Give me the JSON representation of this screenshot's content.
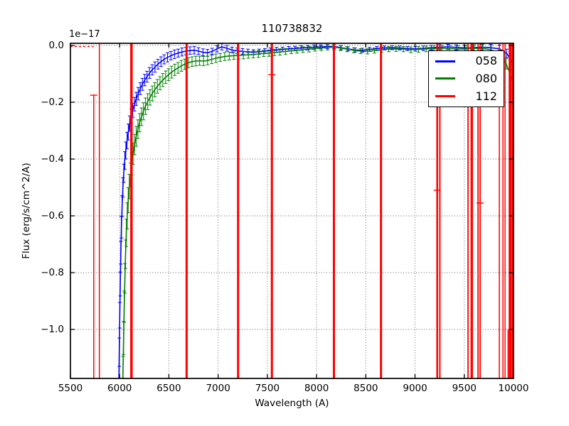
{
  "chart_data": {
    "type": "line",
    "title": "110738832",
    "xlabel": "Wavelength (A)",
    "ylabel": "Flux (erg/s/cm^2/A)",
    "offset_text": "1e−17",
    "xlim": [
      5500,
      10000
    ],
    "ylim": [
      -1.17,
      0.01
    ],
    "xticks": [
      5500,
      6000,
      6500,
      7000,
      7500,
      8000,
      8500,
      9000,
      9500,
      10000
    ],
    "xtick_labels": [
      "5500",
      "6000",
      "6500",
      "7000",
      "7500",
      "8000",
      "8500",
      "9000",
      "9500",
      "10000"
    ],
    "yticks": [
      0.0,
      -0.2,
      -0.4,
      -0.6,
      -0.8,
      -1.0
    ],
    "ytick_labels": [
      "0.0",
      "−0.2",
      "−0.4",
      "−0.6",
      "−0.8",
      "−1.0"
    ],
    "grid": true,
    "legend_position": "upper right",
    "series": [
      {
        "name": "058",
        "color": "#0000ff",
        "style": "line-with-errorbars",
        "points": [
          [
            5990,
            -1.25,
            0.05
          ],
          [
            5996,
            -1.08,
            0.05
          ],
          [
            6001,
            -0.95,
            0.045
          ],
          [
            6006,
            -0.84,
            0.042
          ],
          [
            6012,
            -0.73,
            0.04
          ],
          [
            6018,
            -0.64,
            0.038
          ],
          [
            6025,
            -0.565,
            0.036
          ],
          [
            6033,
            -0.5,
            0.034
          ],
          [
            6042,
            -0.45,
            0.032
          ],
          [
            6052,
            -0.405,
            0.031
          ],
          [
            6063,
            -0.37,
            0.03
          ],
          [
            6075,
            -0.335,
            0.029
          ],
          [
            6088,
            -0.305,
            0.028
          ],
          [
            6102,
            -0.275,
            0.027
          ],
          [
            6117,
            -0.25,
            0.026
          ],
          [
            6133,
            -0.228,
            0.025
          ],
          [
            6150,
            -0.207,
            0.024
          ],
          [
            6168,
            -0.188,
            0.023
          ],
          [
            6188,
            -0.17,
            0.022
          ],
          [
            6209,
            -0.152,
            0.021
          ],
          [
            6231,
            -0.137,
            0.021
          ],
          [
            6254,
            -0.122,
            0.02
          ],
          [
            6278,
            -0.11,
            0.019
          ],
          [
            6304,
            -0.097,
            0.019
          ],
          [
            6331,
            -0.086,
            0.018
          ],
          [
            6359,
            -0.076,
            0.018
          ],
          [
            6389,
            -0.066,
            0.017
          ],
          [
            6420,
            -0.057,
            0.017
          ],
          [
            6452,
            -0.049,
            0.016
          ],
          [
            6486,
            -0.042,
            0.016
          ],
          [
            6521,
            -0.036,
            0.015
          ],
          [
            6557,
            -0.031,
            0.015
          ],
          [
            6594,
            -0.027,
            0.014
          ],
          [
            6633,
            -0.023,
            0.014
          ],
          [
            6673,
            -0.02,
            0.013
          ],
          [
            6714,
            -0.018,
            0.013
          ],
          [
            6757,
            -0.017,
            0.013
          ],
          [
            6801,
            -0.02,
            0.012
          ],
          [
            6846,
            -0.024,
            0.012
          ],
          [
            6892,
            -0.026,
            0.012
          ],
          [
            6939,
            -0.021,
            0.011
          ],
          [
            6988,
            -0.012,
            0.011
          ],
          [
            7038,
            -0.005,
            0.011
          ],
          [
            7089,
            -0.01,
            0.01
          ],
          [
            7141,
            -0.016,
            0.01
          ],
          [
            7194,
            -0.019,
            0.01
          ],
          [
            7248,
            -0.021,
            0.01
          ],
          [
            7303,
            -0.023,
            0.01
          ],
          [
            7359,
            -0.024,
            0.009
          ],
          [
            7416,
            -0.022,
            0.009
          ],
          [
            7474,
            -0.02,
            0.009
          ],
          [
            7533,
            -0.018,
            0.009
          ],
          [
            7593,
            -0.016,
            0.009
          ],
          [
            7654,
            -0.014,
            0.008
          ],
          [
            7716,
            -0.012,
            0.008
          ],
          [
            7779,
            -0.011,
            0.008
          ],
          [
            7843,
            -0.009,
            0.008
          ],
          [
            7908,
            -0.008,
            0.008
          ],
          [
            7974,
            -0.006,
            0.008
          ],
          [
            8041,
            -0.005,
            0.007
          ],
          [
            8109,
            -0.004,
            0.007
          ],
          [
            8178,
            -0.004,
            0.007
          ],
          [
            8248,
            -0.008,
            0.007
          ],
          [
            8319,
            -0.012,
            0.007
          ],
          [
            8391,
            -0.016,
            0.007
          ],
          [
            8464,
            -0.017,
            0.007
          ],
          [
            8538,
            -0.014,
            0.007
          ],
          [
            8613,
            -0.011,
            0.007
          ],
          [
            8689,
            -0.009,
            0.007
          ],
          [
            8766,
            -0.008,
            0.007
          ],
          [
            8844,
            -0.009,
            0.007
          ],
          [
            8923,
            -0.011,
            0.007
          ],
          [
            9003,
            -0.012,
            0.008
          ],
          [
            9084,
            -0.01,
            0.008
          ],
          [
            9166,
            -0.008,
            0.008
          ],
          [
            9249,
            -0.006,
            0.008
          ],
          [
            9333,
            -0.005,
            0.009
          ],
          [
            9418,
            -0.007,
            0.009
          ],
          [
            9504,
            -0.009,
            0.01
          ],
          [
            9591,
            -0.008,
            0.01
          ],
          [
            9679,
            -0.006,
            0.011
          ],
          [
            9768,
            -0.008,
            0.012
          ],
          [
            9858,
            -0.012,
            0.013
          ],
          [
            9930,
            -0.028,
            0.015
          ],
          [
            9975,
            -0.05,
            0.017
          ],
          [
            9998,
            -0.068,
            0.018
          ]
        ]
      },
      {
        "name": "080",
        "color": "#007f00",
        "style": "line-with-errorbars",
        "points": [
          [
            6028,
            -1.27,
            0.065
          ],
          [
            6034,
            -1.155,
            0.06
          ],
          [
            6040,
            -1.03,
            0.058
          ],
          [
            6046,
            -0.92,
            0.055
          ],
          [
            6053,
            -0.82,
            0.052
          ],
          [
            6060,
            -0.735,
            0.05
          ],
          [
            6068,
            -0.66,
            0.048
          ],
          [
            6077,
            -0.6,
            0.046
          ],
          [
            6087,
            -0.545,
            0.044
          ],
          [
            6098,
            -0.497,
            0.043
          ],
          [
            6110,
            -0.455,
            0.041
          ],
          [
            6123,
            -0.416,
            0.039
          ],
          [
            6137,
            -0.381,
            0.038
          ],
          [
            6152,
            -0.349,
            0.036
          ],
          [
            6168,
            -0.32,
            0.035
          ],
          [
            6185,
            -0.295,
            0.033
          ],
          [
            6203,
            -0.272,
            0.032
          ],
          [
            6222,
            -0.251,
            0.031
          ],
          [
            6242,
            -0.232,
            0.03
          ],
          [
            6263,
            -0.214,
            0.029
          ],
          [
            6285,
            -0.198,
            0.028
          ],
          [
            6308,
            -0.183,
            0.027
          ],
          [
            6332,
            -0.169,
            0.026
          ],
          [
            6357,
            -0.156,
            0.025
          ],
          [
            6383,
            -0.144,
            0.024
          ],
          [
            6410,
            -0.133,
            0.023
          ],
          [
            6438,
            -0.122,
            0.023
          ],
          [
            6467,
            -0.112,
            0.022
          ],
          [
            6497,
            -0.103,
            0.021
          ],
          [
            6528,
            -0.094,
            0.021
          ],
          [
            6560,
            -0.086,
            0.02
          ],
          [
            6593,
            -0.079,
            0.019
          ],
          [
            6627,
            -0.072,
            0.019
          ],
          [
            6662,
            -0.066,
            0.018
          ],
          [
            6698,
            -0.061,
            0.018
          ],
          [
            6735,
            -0.057,
            0.017
          ],
          [
            6773,
            -0.055,
            0.017
          ],
          [
            6812,
            -0.054,
            0.016
          ],
          [
            6852,
            -0.055,
            0.016
          ],
          [
            6893,
            -0.053,
            0.015
          ],
          [
            6935,
            -0.049,
            0.015
          ],
          [
            6978,
            -0.045,
            0.015
          ],
          [
            7022,
            -0.042,
            0.014
          ],
          [
            7067,
            -0.039,
            0.014
          ],
          [
            7113,
            -0.037,
            0.014
          ],
          [
            7160,
            -0.036,
            0.013
          ],
          [
            7208,
            -0.035,
            0.013
          ],
          [
            7257,
            -0.034,
            0.013
          ],
          [
            7307,
            -0.033,
            0.012
          ],
          [
            7358,
            -0.032,
            0.012
          ],
          [
            7410,
            -0.03,
            0.012
          ],
          [
            7463,
            -0.028,
            0.011
          ],
          [
            7517,
            -0.027,
            0.011
          ],
          [
            7572,
            -0.025,
            0.011
          ],
          [
            7628,
            -0.023,
            0.011
          ],
          [
            7685,
            -0.021,
            0.01
          ],
          [
            7743,
            -0.019,
            0.01
          ],
          [
            7802,
            -0.017,
            0.01
          ],
          [
            7862,
            -0.015,
            0.01
          ],
          [
            7923,
            -0.013,
            0.01
          ],
          [
            7985,
            -0.011,
            0.009
          ],
          [
            8048,
            -0.009,
            0.009
          ],
          [
            8112,
            -0.007,
            0.009
          ],
          [
            8177,
            -0.006,
            0.009
          ],
          [
            8243,
            -0.009,
            0.009
          ],
          [
            8310,
            -0.013,
            0.009
          ],
          [
            8378,
            -0.017,
            0.009
          ],
          [
            8447,
            -0.02,
            0.009
          ],
          [
            8517,
            -0.021,
            0.009
          ],
          [
            8588,
            -0.018,
            0.009
          ],
          [
            8660,
            -0.015,
            0.009
          ],
          [
            8733,
            -0.013,
            0.009
          ],
          [
            8807,
            -0.012,
            0.009
          ],
          [
            8882,
            -0.013,
            0.009
          ],
          [
            8958,
            -0.015,
            0.01
          ],
          [
            9035,
            -0.014,
            0.01
          ],
          [
            9113,
            -0.012,
            0.01
          ],
          [
            9192,
            -0.011,
            0.011
          ],
          [
            9272,
            -0.01,
            0.011
          ],
          [
            9353,
            -0.011,
            0.012
          ],
          [
            9435,
            -0.013,
            0.012
          ],
          [
            9518,
            -0.012,
            0.013
          ],
          [
            9602,
            -0.01,
            0.013
          ],
          [
            9687,
            -0.011,
            0.014
          ],
          [
            9773,
            -0.015,
            0.015
          ],
          [
            9860,
            -0.032,
            0.016
          ],
          [
            9925,
            -0.065,
            0.018
          ],
          [
            9970,
            -0.103,
            0.02
          ],
          [
            9998,
            -0.132,
            0.022
          ]
        ]
      },
      {
        "name": "112",
        "color": "#ff0000",
        "style": "near-zero-with-error-spikes",
        "near_zero_dash": {
          "x0": 5500,
          "x1": 5735,
          "y": -0.004
        },
        "spikes": [
          {
            "x": 5737,
            "from": -0.175,
            "cap": -0.175,
            "w": 1.5
          },
          {
            "x": 5794,
            "w": 1.5
          },
          {
            "x": 6120,
            "w": 3.5
          },
          {
            "x": 6680,
            "w": 3
          },
          {
            "x": 7203,
            "w": 3
          },
          {
            "x": 7546,
            "w": 3,
            "cap": -0.103
          },
          {
            "x": 8176,
            "w": 3
          },
          {
            "x": 8654,
            "w": 3
          },
          {
            "x": 9225,
            "w": 2.5,
            "cap": -0.51
          },
          {
            "x": 9252,
            "w": 2
          },
          {
            "x": 9538,
            "w": 1.8
          },
          {
            "x": 9570,
            "w": 1.8
          },
          {
            "x": 9582,
            "w": 1.8
          },
          {
            "x": 9640,
            "w": 1.8
          },
          {
            "x": 9661,
            "w": 1.8,
            "cap": -0.555
          },
          {
            "x": 9856,
            "w": 1.5
          },
          {
            "x": 9893,
            "w": 1.5
          },
          {
            "x": 9914,
            "w": 1.5
          },
          {
            "x": 9945,
            "from": -1.0,
            "w": 1.5
          },
          {
            "x": 9958,
            "w": 2
          },
          {
            "x": 9972,
            "w": 2.5
          },
          {
            "x": 9990,
            "w": 2
          }
        ]
      }
    ]
  }
}
